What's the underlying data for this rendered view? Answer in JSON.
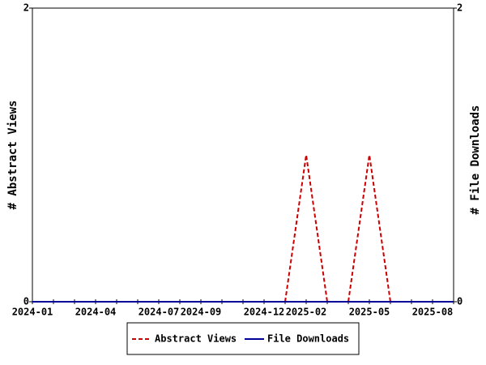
{
  "chart_data": {
    "type": "line",
    "categories": [
      "2024-01",
      null,
      null,
      "2024-04",
      null,
      null,
      "2024-07",
      null,
      "2024-09",
      null,
      null,
      "2024-12",
      null,
      "2025-02",
      null,
      null,
      "2025-05",
      null,
      null,
      "2025-08",
      null
    ],
    "y_label": "# Abstract Views",
    "y2_label": "# File Downloads",
    "ylim": [
      0,
      2
    ],
    "yticks": [
      0,
      2
    ],
    "y2lim": [
      0,
      2
    ],
    "y2ticks": [
      0,
      2
    ],
    "series": [
      {
        "name": "Abstract Views",
        "color": "#cc0000",
        "dashed": true,
        "values": [
          0,
          0,
          0,
          0,
          0,
          0,
          0,
          0,
          0,
          0,
          0,
          0,
          0,
          1,
          0,
          0,
          1,
          0,
          0,
          0,
          0
        ]
      },
      {
        "name": "File Downloads",
        "color": "#000099",
        "dashed": false,
        "axis": "y2",
        "values": [
          0,
          0,
          0,
          0,
          0,
          0,
          0,
          0,
          0,
          0,
          0,
          0,
          0,
          0,
          0,
          0,
          0,
          0,
          0,
          0,
          0
        ]
      }
    ],
    "legend": "bottom"
  }
}
